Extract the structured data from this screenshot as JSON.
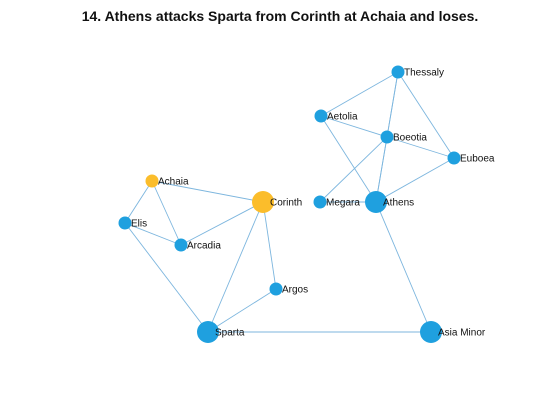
{
  "title": "14. Athens attacks Sparta from Corinth at Achaia and loses.",
  "colors": {
    "edge": "#7db6de",
    "node": "#1fa0df",
    "highlight": "#fbbd2b"
  },
  "nodes": [
    {
      "id": "thessaly",
      "label": "Thessaly",
      "color": "node",
      "size": "small"
    },
    {
      "id": "aetolia",
      "label": "Aetolia",
      "color": "node",
      "size": "small"
    },
    {
      "id": "boeotia",
      "label": "Boeotia",
      "color": "node",
      "size": "small"
    },
    {
      "id": "euboea",
      "label": "Euboea",
      "color": "node",
      "size": "small"
    },
    {
      "id": "achaia",
      "label": "Achaia",
      "color": "highlight",
      "size": "small"
    },
    {
      "id": "corinth",
      "label": "Corinth",
      "color": "highlight",
      "size": "large"
    },
    {
      "id": "megara",
      "label": "Megara",
      "color": "node",
      "size": "small"
    },
    {
      "id": "athens",
      "label": "Athens",
      "color": "node",
      "size": "large"
    },
    {
      "id": "elis",
      "label": "Elis",
      "color": "node",
      "size": "small"
    },
    {
      "id": "arcadia",
      "label": "Arcadia",
      "color": "node",
      "size": "small"
    },
    {
      "id": "argos",
      "label": "Argos",
      "color": "node",
      "size": "small"
    },
    {
      "id": "sparta",
      "label": "Sparta",
      "color": "node",
      "size": "large"
    },
    {
      "id": "asia-minor",
      "label": "Asia Minor",
      "color": "node",
      "size": "large"
    }
  ],
  "edges": [
    [
      "thessaly",
      "aetolia"
    ],
    [
      "thessaly",
      "boeotia"
    ],
    [
      "thessaly",
      "euboea"
    ],
    [
      "thessaly",
      "athens"
    ],
    [
      "aetolia",
      "boeotia"
    ],
    [
      "aetolia",
      "athens"
    ],
    [
      "boeotia",
      "euboea"
    ],
    [
      "boeotia",
      "athens"
    ],
    [
      "boeotia",
      "megara"
    ],
    [
      "euboea",
      "athens"
    ],
    [
      "megara",
      "athens"
    ],
    [
      "athens",
      "asia-minor"
    ],
    [
      "achaia",
      "elis"
    ],
    [
      "achaia",
      "arcadia"
    ],
    [
      "achaia",
      "corinth"
    ],
    [
      "elis",
      "arcadia"
    ],
    [
      "elis",
      "sparta"
    ],
    [
      "arcadia",
      "corinth"
    ],
    [
      "corinth",
      "argos"
    ],
    [
      "corinth",
      "sparta"
    ],
    [
      "argos",
      "sparta"
    ],
    [
      "sparta",
      "asia-minor"
    ]
  ]
}
